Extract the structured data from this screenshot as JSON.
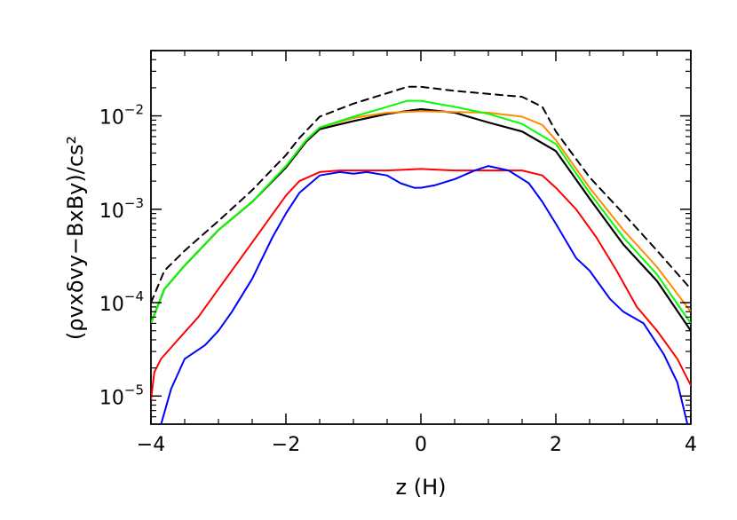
{
  "chart_data": {
    "type": "line",
    "xlabel": "z (H)",
    "ylabel": "(ρvxδvy−BxBy)/cs²",
    "xlim": [
      -4,
      4
    ],
    "ylim": [
      5e-06,
      0.05
    ],
    "yscale": "log",
    "x_ticks": [
      -4,
      -2,
      0,
      2,
      4
    ],
    "x_tick_labels": [
      "−4",
      "−2",
      "0",
      "2",
      "4"
    ],
    "y_ticks": [
      1e-05,
      0.0001,
      0.001,
      0.01
    ],
    "y_tick_labels": [
      {
        "base": "10",
        "exp": "−5"
      },
      {
        "base": "10",
        "exp": "−4"
      },
      {
        "base": "10",
        "exp": "−3"
      },
      {
        "base": "10",
        "exp": "−2"
      }
    ],
    "grid": false,
    "series": [
      {
        "color": "#000000",
        "dash": "8,6",
        "width": 2,
        "x": [
          -4,
          -3.8,
          -3.5,
          -3.0,
          -2.5,
          -2.0,
          -1.8,
          -1.5,
          -1.0,
          -0.5,
          -0.2,
          0,
          0.5,
          1.0,
          1.5,
          1.8,
          2.0,
          2.5,
          3.0,
          3.5,
          4.0
        ],
        "y": [
          0.0001,
          0.00022,
          0.00036,
          0.00075,
          0.0016,
          0.0038,
          0.0058,
          0.0098,
          0.0135,
          0.0175,
          0.0205,
          0.0205,
          0.0185,
          0.0172,
          0.016,
          0.0125,
          0.0068,
          0.0022,
          0.0009,
          0.00036,
          0.00014
        ]
      },
      {
        "color": "#000000",
        "dash": "",
        "width": 2.2,
        "x": [
          -4,
          -3.8,
          -3.5,
          -3.0,
          -2.5,
          -2.0,
          -1.7,
          -1.5,
          -1.0,
          -0.5,
          0,
          0.5,
          1.0,
          1.5,
          2.0,
          2.5,
          3.0,
          3.5,
          4.0
        ],
        "y": [
          6e-05,
          0.00014,
          0.00025,
          0.0006,
          0.0012,
          0.0028,
          0.0053,
          0.0072,
          0.0088,
          0.0105,
          0.0118,
          0.0108,
          0.0085,
          0.0068,
          0.0042,
          0.0013,
          0.00042,
          0.00017,
          5e-05
        ]
      },
      {
        "color": "#ff8c00",
        "dash": "",
        "width": 2,
        "x": [
          -4,
          -3.8,
          -3.5,
          -3.0,
          -2.5,
          -2.0,
          -1.7,
          -1.5,
          -1.0,
          -0.5,
          0,
          0.5,
          1.0,
          1.5,
          1.8,
          2.0,
          2.5,
          3.0,
          3.5,
          4.0
        ],
        "y": [
          6e-05,
          0.00014,
          0.00025,
          0.0006,
          0.0012,
          0.0029,
          0.0055,
          0.0075,
          0.0095,
          0.0108,
          0.0112,
          0.011,
          0.0108,
          0.0098,
          0.008,
          0.0055,
          0.0017,
          0.0006,
          0.00024,
          8e-05
        ]
      },
      {
        "color": "#00ff00",
        "dash": "",
        "width": 2,
        "x": [
          -4,
          -3.8,
          -3.5,
          -3.0,
          -2.5,
          -2.0,
          -1.7,
          -1.5,
          -1.0,
          -0.5,
          -0.2,
          0,
          0.5,
          1.0,
          1.5,
          2.0,
          2.5,
          3.0,
          3.5,
          4.0
        ],
        "y": [
          6e-05,
          0.00014,
          0.00025,
          0.0006,
          0.0012,
          0.0029,
          0.0055,
          0.0075,
          0.0098,
          0.0125,
          0.0145,
          0.0145,
          0.0125,
          0.0105,
          0.0082,
          0.005,
          0.0015,
          0.0005,
          0.0002,
          6e-05
        ]
      },
      {
        "color": "#ff0000",
        "dash": "",
        "width": 2,
        "x": [
          -4.0,
          -3.95,
          -3.85,
          -3.6,
          -3.3,
          -3.0,
          -2.6,
          -2.3,
          -2.0,
          -1.8,
          -1.5,
          -1.2,
          -1.0,
          -0.5,
          0,
          0.5,
          1.0,
          1.5,
          1.8,
          2.0,
          2.3,
          2.6,
          2.9,
          3.2,
          3.5,
          3.8,
          4.0
        ],
        "y": [
          9e-06,
          1.8e-05,
          2.5e-05,
          4e-05,
          7e-05,
          0.00014,
          0.00035,
          0.0007,
          0.0014,
          0.002,
          0.0025,
          0.0026,
          0.0026,
          0.0026,
          0.0027,
          0.0026,
          0.0026,
          0.0026,
          0.0023,
          0.0017,
          0.001,
          0.0005,
          0.00022,
          9e-05,
          5e-05,
          2.5e-05,
          1.3e-05
        ]
      },
      {
        "color": "#0000ff",
        "dash": "",
        "width": 2,
        "x": [
          -3.85,
          -3.7,
          -3.5,
          -3.2,
          -3.0,
          -2.8,
          -2.5,
          -2.2,
          -2.0,
          -1.8,
          -1.5,
          -1.2,
          -1.0,
          -0.8,
          -0.5,
          -0.3,
          -0.1,
          0.0,
          0.2,
          0.5,
          0.8,
          1.0,
          1.3,
          1.6,
          1.8,
          2.0,
          2.3,
          2.5,
          2.8,
          3.0,
          3.3,
          3.6,
          3.8,
          3.95
        ],
        "y": [
          5e-06,
          1.2e-05,
          2.5e-05,
          3.5e-05,
          5e-05,
          8e-05,
          0.00018,
          0.0005,
          0.0009,
          0.0015,
          0.0023,
          0.0025,
          0.0024,
          0.0025,
          0.0023,
          0.0019,
          0.0017,
          0.0017,
          0.0018,
          0.0021,
          0.0026,
          0.0029,
          0.0026,
          0.0019,
          0.0012,
          0.0007,
          0.0003,
          0.00022,
          0.00011,
          8e-05,
          6e-05,
          2.8e-05,
          1.4e-05,
          5e-06
        ]
      }
    ]
  }
}
